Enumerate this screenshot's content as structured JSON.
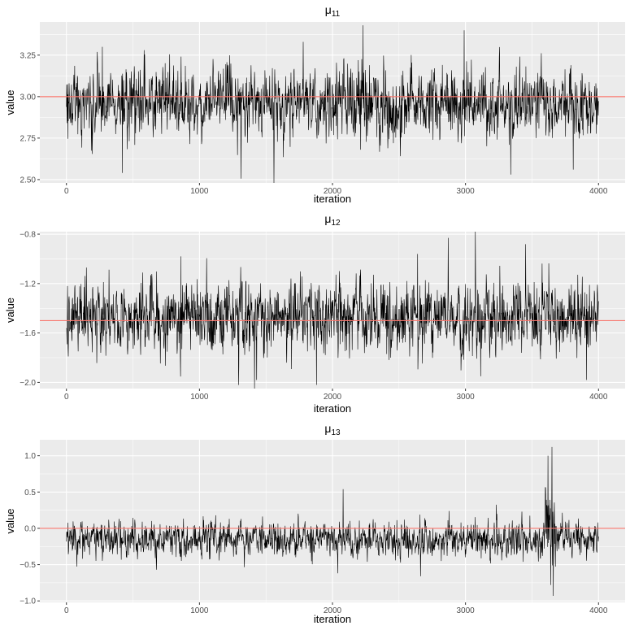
{
  "chart_data": [
    {
      "type": "line",
      "title": "μ11",
      "title_symbol": "μ",
      "title_subscript": "11",
      "xlabel": "iteration",
      "ylabel": "value",
      "xlim": [
        -200,
        4200
      ],
      "ylim": [
        2.48,
        3.45
      ],
      "x_ticks": [
        0,
        1000,
        2000,
        3000,
        4000
      ],
      "y_ticks": [
        2.5,
        2.75,
        3.0,
        3.25
      ],
      "y_tick_labels": [
        "2.50",
        "2.75",
        "3.00",
        "3.25"
      ],
      "n_iterations": 4000,
      "reference_line": 3.0,
      "series": [
        {
          "center": 2.96,
          "spread": 0.095,
          "extremes": [
            [
              420,
              2.54
            ],
            [
              3340,
              2.53
            ],
            [
              2230,
              3.43
            ],
            [
              2990,
              3.4
            ],
            [
              3810,
              2.56
            ],
            [
              1780,
              3.33
            ],
            [
              270,
              3.3
            ]
          ]
        }
      ],
      "grid": true,
      "colors": {
        "trace": "#000000",
        "reference_line": "#F8766D",
        "panel": "#EBEBEB"
      }
    },
    {
      "type": "line",
      "title": "μ12",
      "title_symbol": "μ",
      "title_subscript": "12",
      "xlabel": "iteration",
      "ylabel": "value",
      "xlim": [
        -200,
        4200
      ],
      "ylim": [
        -2.05,
        -0.78
      ],
      "x_ticks": [
        0,
        1000,
        2000,
        3000,
        4000
      ],
      "y_ticks": [
        -2.0,
        -1.6,
        -1.2,
        -0.8
      ],
      "y_tick_labels": [
        "−2.0",
        "−1.6",
        "−1.2",
        "−0.8"
      ],
      "n_iterations": 4000,
      "reference_line": -1.5,
      "series": [
        {
          "center": -1.47,
          "spread": 0.13,
          "extremes": [
            [
              1880,
              -2.02
            ],
            [
              2870,
              -0.83
            ],
            [
              2640,
              -0.96
            ],
            [
              860,
              -0.98
            ],
            [
              3910,
              -1.98
            ],
            [
              1430,
              -1.98
            ]
          ]
        }
      ],
      "grid": true,
      "colors": {
        "trace": "#000000",
        "reference_line": "#F8766D",
        "panel": "#EBEBEB"
      }
    },
    {
      "type": "line",
      "title": "μ13",
      "title_symbol": "μ",
      "title_subscript": "13",
      "xlabel": "iteration",
      "ylabel": "value",
      "xlim": [
        -200,
        4200
      ],
      "ylim": [
        -1.02,
        1.22
      ],
      "x_ticks": [
        0,
        1000,
        2000,
        3000,
        4000
      ],
      "y_ticks": [
        -1.0,
        -0.5,
        0.0,
        0.5,
        1.0
      ],
      "y_tick_labels": [
        "−1.0",
        "−0.5",
        "0.0",
        "0.5",
        "1.0"
      ],
      "n_iterations": 4000,
      "reference_line": 0.0,
      "series": [
        {
          "center": -0.15,
          "spread": 0.11,
          "extremes": [
            [
              2080,
              0.54
            ],
            [
              2040,
              -0.62
            ],
            [
              3650,
              1.12
            ],
            [
              3620,
              1.0
            ],
            [
              3660,
              -0.93
            ],
            [
              3640,
              -0.78
            ]
          ],
          "burst": [
            3600,
            3680,
            0.6
          ]
        }
      ],
      "grid": true,
      "colors": {
        "trace": "#000000",
        "reference_line": "#F8766D",
        "panel": "#EBEBEB"
      }
    }
  ]
}
